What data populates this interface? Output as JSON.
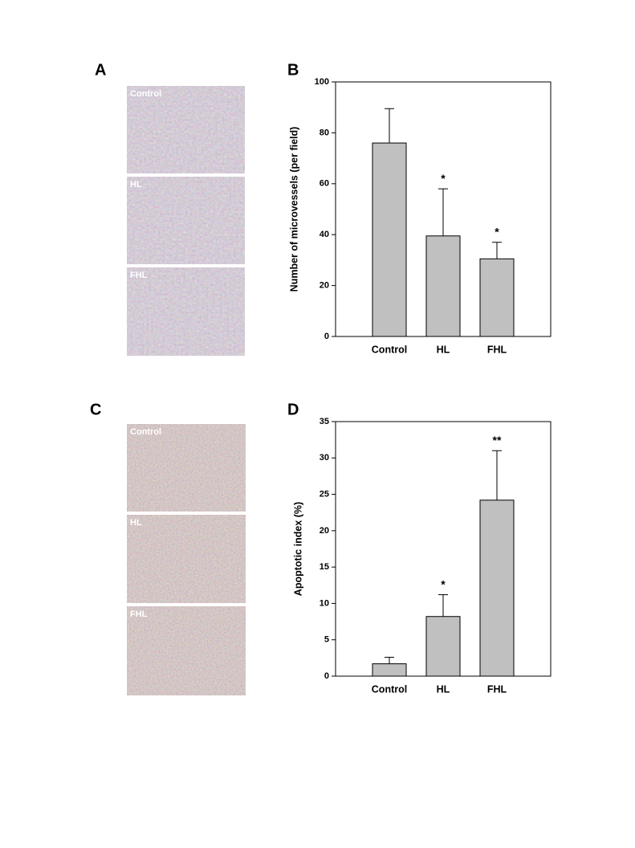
{
  "figure": {
    "panels": [
      "A",
      "B",
      "C",
      "D"
    ],
    "images": [
      {
        "labels": [
          "Control",
          "HL",
          "FHL"
        ]
      },
      {
        "labels": [
          "Control",
          "HL",
          "FHL"
        ]
      }
    ]
  },
  "chart_data": [
    {
      "type": "bar",
      "ylabel": "Number of microvessels (per field)",
      "categories": [
        "Control",
        "HL",
        "FHL"
      ],
      "values": [
        76,
        39.5,
        30.5
      ],
      "errors": [
        13.5,
        18.5,
        6.5
      ],
      "annotations": [
        null,
        "*",
        "*"
      ],
      "color": "#c0c0c0",
      "ylim": [
        0,
        100
      ],
      "yticks": [
        0,
        20,
        40,
        60,
        80,
        100
      ]
    },
    {
      "type": "bar",
      "ylabel": "Apoptotic index (%)",
      "categories": [
        "Control",
        "HL",
        "FHL"
      ],
      "values": [
        1.7,
        8.2,
        24.2
      ],
      "errors": [
        0.9,
        3.0,
        6.8
      ],
      "annotations": [
        null,
        "*",
        "**"
      ],
      "color": "#c0c0c0",
      "ylim": [
        0,
        35
      ],
      "yticks": [
        0,
        5,
        10,
        15,
        20,
        25,
        30,
        35
      ]
    }
  ]
}
